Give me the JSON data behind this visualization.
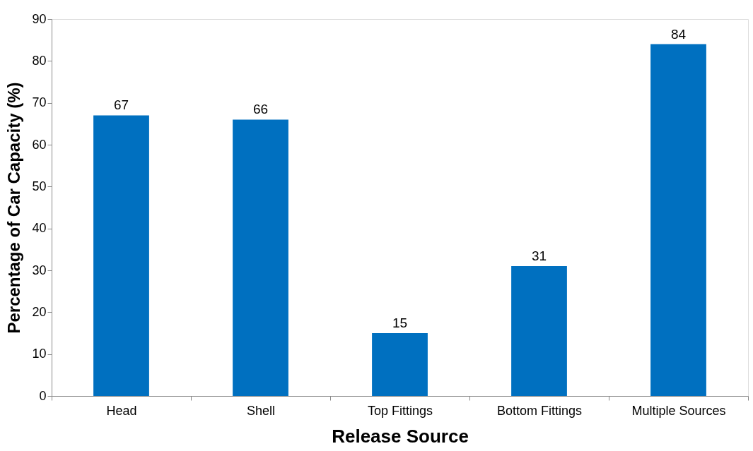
{
  "chart_data": {
    "type": "bar",
    "xlabel": "Release Source",
    "ylabel": "Percentage of Car Capacity (%)",
    "categories": [
      "Head",
      "Shell",
      "Top Fittings",
      "Bottom Fittings",
      "Multiple Sources"
    ],
    "values": [
      67,
      66,
      15,
      31,
      84
    ],
    "color": "#0070c0",
    "ylim": [
      0,
      90
    ],
    "yticks": [
      0,
      10,
      20,
      30,
      40,
      50,
      60,
      70,
      80,
      90
    ],
    "grid": false,
    "data_labels": true
  }
}
